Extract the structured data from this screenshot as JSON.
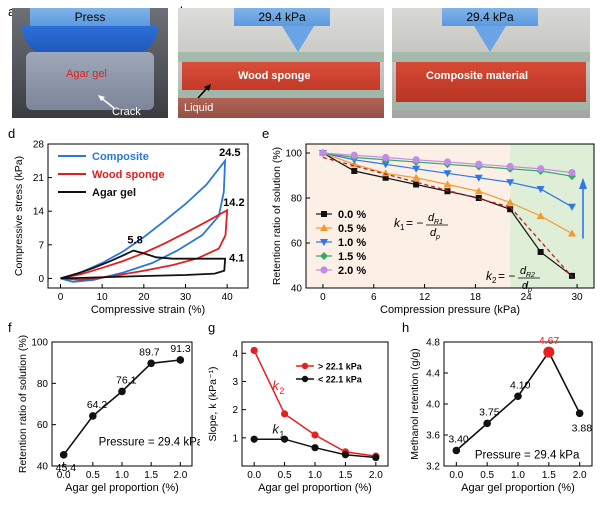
{
  "panel_labels": {
    "a": "a",
    "b": "b",
    "c": "c",
    "d": "d",
    "e": "e",
    "f": "f",
    "g": "g",
    "h": "h"
  },
  "photos": {
    "a": {
      "banner": "Press",
      "label": "Agar gel",
      "crack": "Crack"
    },
    "b": {
      "banner": "29.4 kPa",
      "label": "Wood sponge",
      "liquid": "Liquid"
    },
    "c": {
      "banner": "29.4 kPa",
      "label": "Composite material"
    }
  },
  "chart_data": [
    {
      "id": "d",
      "type": "line",
      "xlabel": "Compressive strain (%)",
      "ylabel": "Compressive stress (kPa)",
      "xlim": [
        -3,
        45
      ],
      "ylim": [
        -2,
        28
      ],
      "xticks": [
        0,
        10,
        20,
        30,
        40
      ],
      "yticks": [
        0,
        7,
        14,
        21,
        28
      ],
      "series": [
        {
          "name": "Composite",
          "color": "#2a78d6",
          "up": [
            [
              0,
              0
            ],
            [
              5,
              1.3
            ],
            [
              10,
              3.2
            ],
            [
              15,
              5.6
            ],
            [
              20,
              8.6
            ],
            [
              25,
              12.0
            ],
            [
              30,
              15.5
            ],
            [
              35,
              19.5
            ],
            [
              39.5,
              24.5
            ]
          ],
          "down": [
            [
              39.5,
              24.5
            ],
            [
              39.2,
              18
            ],
            [
              38,
              13
            ],
            [
              34,
              9.0
            ],
            [
              28,
              5.8
            ],
            [
              22,
              3.2
            ],
            [
              15,
              1.2
            ],
            [
              8,
              -0.3
            ],
            [
              3,
              -0.7
            ],
            [
              0,
              0
            ]
          ]
        },
        {
          "name": "Wood sponge",
          "color": "#e02020",
          "up": [
            [
              0,
              0
            ],
            [
              5,
              0.9
            ],
            [
              10,
              2.2
            ],
            [
              15,
              3.6
            ],
            [
              20,
              5.3
            ],
            [
              25,
              7.3
            ],
            [
              30,
              9.5
            ],
            [
              35,
              11.8
            ],
            [
              40,
              14.2
            ]
          ],
          "down": [
            [
              40,
              14.2
            ],
            [
              39.6,
              9
            ],
            [
              38,
              6.2
            ],
            [
              33,
              4.2
            ],
            [
              27,
              2.8
            ],
            [
              20,
              1.6
            ],
            [
              12,
              0.4
            ],
            [
              5,
              -0.3
            ],
            [
              0,
              0
            ]
          ]
        },
        {
          "name": "Agar gel",
          "color": "#111111",
          "up": [
            [
              0,
              0
            ],
            [
              4,
              1.0
            ],
            [
              8,
              2.2
            ],
            [
              12,
              3.6
            ],
            [
              15,
              4.8
            ],
            [
              17.5,
              5.8
            ],
            [
              20,
              5.2
            ],
            [
              23,
              4.4
            ],
            [
              27,
              4.1
            ],
            [
              33,
              4.1
            ],
            [
              39.5,
              4.1
            ]
          ],
          "down": [
            [
              39.5,
              4.1
            ],
            [
              39.3,
              1.6
            ],
            [
              37,
              1.0
            ],
            [
              30,
              0.7
            ],
            [
              20,
              0.5
            ],
            [
              12,
              0.3
            ],
            [
              5,
              0.1
            ],
            [
              0,
              0
            ]
          ]
        }
      ],
      "annotations": [
        {
          "text": "24.5",
          "x": 39.5,
          "y": 24.5
        },
        {
          "text": "14.2",
          "x": 40,
          "y": 14.2
        },
        {
          "text": "5.8",
          "x": 17.5,
          "y": 5.8
        },
        {
          "text": "4.1",
          "x": 39.5,
          "y": 4.1
        }
      ]
    },
    {
      "id": "e",
      "type": "line",
      "xlabel": "Compression pressure (kPa)",
      "ylabel": "Retention ratio of solution (%)",
      "xlim": [
        -2,
        32
      ],
      "ylim": [
        40,
        104
      ],
      "xticks": [
        0,
        6,
        12,
        18,
        24,
        30
      ],
      "yticks": [
        40,
        60,
        80,
        100
      ],
      "series": [
        {
          "name": "0.0 %",
          "color": "#111111",
          "marker": "square",
          "x": [
            0,
            3.7,
            7.4,
            11.0,
            14.7,
            18.4,
            22.1,
            25.7,
            29.4
          ],
          "y": [
            100,
            92,
            89,
            86,
            83,
            80,
            75,
            56,
            45.4
          ]
        },
        {
          "name": "0.5 %",
          "color": "#f39a2c",
          "marker": "triangle-up",
          "x": [
            0,
            3.7,
            7.4,
            11.0,
            14.7,
            18.4,
            22.1,
            25.7,
            29.4
          ],
          "y": [
            100,
            95,
            91,
            89,
            86,
            83,
            78,
            72,
            64.2
          ]
        },
        {
          "name": "1.0 %",
          "color": "#2e77e8",
          "marker": "triangle-down",
          "x": [
            0,
            3.7,
            7.4,
            11.0,
            14.7,
            18.4,
            22.1,
            25.7,
            29.4
          ],
          "y": [
            100,
            97,
            95,
            93,
            91,
            89,
            87,
            84,
            76.1
          ]
        },
        {
          "name": "1.5 %",
          "color": "#3aa76d",
          "marker": "diamond",
          "x": [
            0,
            3.7,
            7.4,
            11.0,
            14.7,
            18.4,
            22.1,
            25.7,
            29.4
          ],
          "y": [
            100,
            98,
            97,
            96,
            95,
            94,
            93,
            92,
            89.7
          ]
        },
        {
          "name": "2.0 %",
          "color": "#c28be6",
          "marker": "circle",
          "x": [
            0,
            3.7,
            7.4,
            11.0,
            14.7,
            18.4,
            22.1,
            25.7,
            29.4
          ],
          "y": [
            100,
            99,
            98,
            97,
            96,
            95,
            94,
            93,
            91.3
          ]
        }
      ],
      "fit_lines": [
        {
          "from": [
            0,
            98
          ],
          "to": [
            22.1,
            76
          ]
        },
        {
          "from": [
            22.1,
            76
          ],
          "to": [
            29.4,
            45
          ]
        }
      ],
      "shade_split": 22.1,
      "formulas": [
        {
          "lhs": "k",
          "sub": "1",
          "rhs": "= −",
          "num": "d",
          "numsub": "R1",
          "den": "d",
          "densub": "p",
          "x": 21,
          "y": 76
        },
        {
          "lhs": "k",
          "sub": "2",
          "rhs": "= −",
          "num": "d",
          "numsub": "R2",
          "den": "d",
          "densub": "p",
          "x": 22.5,
          "y": 51
        }
      ]
    },
    {
      "id": "f",
      "type": "line",
      "xlabel": "Agar gel proportion (%)",
      "ylabel": "Retention ratio of solution (%)",
      "xlim": [
        -0.2,
        2.2
      ],
      "ylim": [
        40,
        100
      ],
      "xticks": [
        0.0,
        0.5,
        1.0,
        1.5,
        2.0
      ],
      "yticks": [
        40,
        60,
        80,
        100
      ],
      "x": [
        0.0,
        0.5,
        1.0,
        1.5,
        2.0
      ],
      "y": [
        45.4,
        64.2,
        76.1,
        89.7,
        91.3
      ],
      "labels": [
        "45.4",
        "64.2",
        "76.1",
        "89.7",
        "91.3"
      ],
      "note": "Pressure = 29.4 kPa",
      "color": "#111111"
    },
    {
      "id": "g",
      "type": "line",
      "xlabel": "Agar gel proportion (%)",
      "ylabel": "Slope, k (kPa⁻¹)",
      "xlim": [
        -0.2,
        2.2
      ],
      "ylim": [
        0,
        4.4
      ],
      "xticks": [
        0.0,
        0.5,
        1.0,
        1.5,
        2.0
      ],
      "yticks": [
        1,
        2,
        3,
        4
      ],
      "series": [
        {
          "name": "> 22.1 kPa",
          "color": "#e62020",
          "x": [
            0,
            0.5,
            1.0,
            1.5,
            2.0
          ],
          "y": [
            4.1,
            1.85,
            1.1,
            0.5,
            0.35
          ],
          "label": "k",
          "sub": "2"
        },
        {
          "name": "< 22.1 kPa",
          "color": "#111111",
          "x": [
            0,
            0.5,
            1.0,
            1.5,
            2.0
          ],
          "y": [
            0.95,
            0.95,
            0.65,
            0.4,
            0.3
          ],
          "label": "k",
          "sub": "1"
        }
      ]
    },
    {
      "id": "h",
      "type": "line",
      "xlabel": "Agar gel proportion (%)",
      "ylabel": "Methanol retention (g/g)",
      "xlim": [
        -0.2,
        2.2
      ],
      "ylim": [
        3.2,
        4.8
      ],
      "xticks": [
        0.0,
        0.5,
        1.0,
        1.5,
        2.0
      ],
      "yticks": [
        3.2,
        3.6,
        4.0,
        4.4,
        4.8
      ],
      "x": [
        0.0,
        0.5,
        1.0,
        1.5,
        2.0
      ],
      "y": [
        3.4,
        3.75,
        4.1,
        4.67,
        3.88
      ],
      "labels": [
        "3.40",
        "3.75",
        "4.10",
        "4.67",
        "3.88"
      ],
      "highlight_index": 3,
      "note": "Pressure = 29.4 kPa",
      "color": "#111111"
    }
  ]
}
